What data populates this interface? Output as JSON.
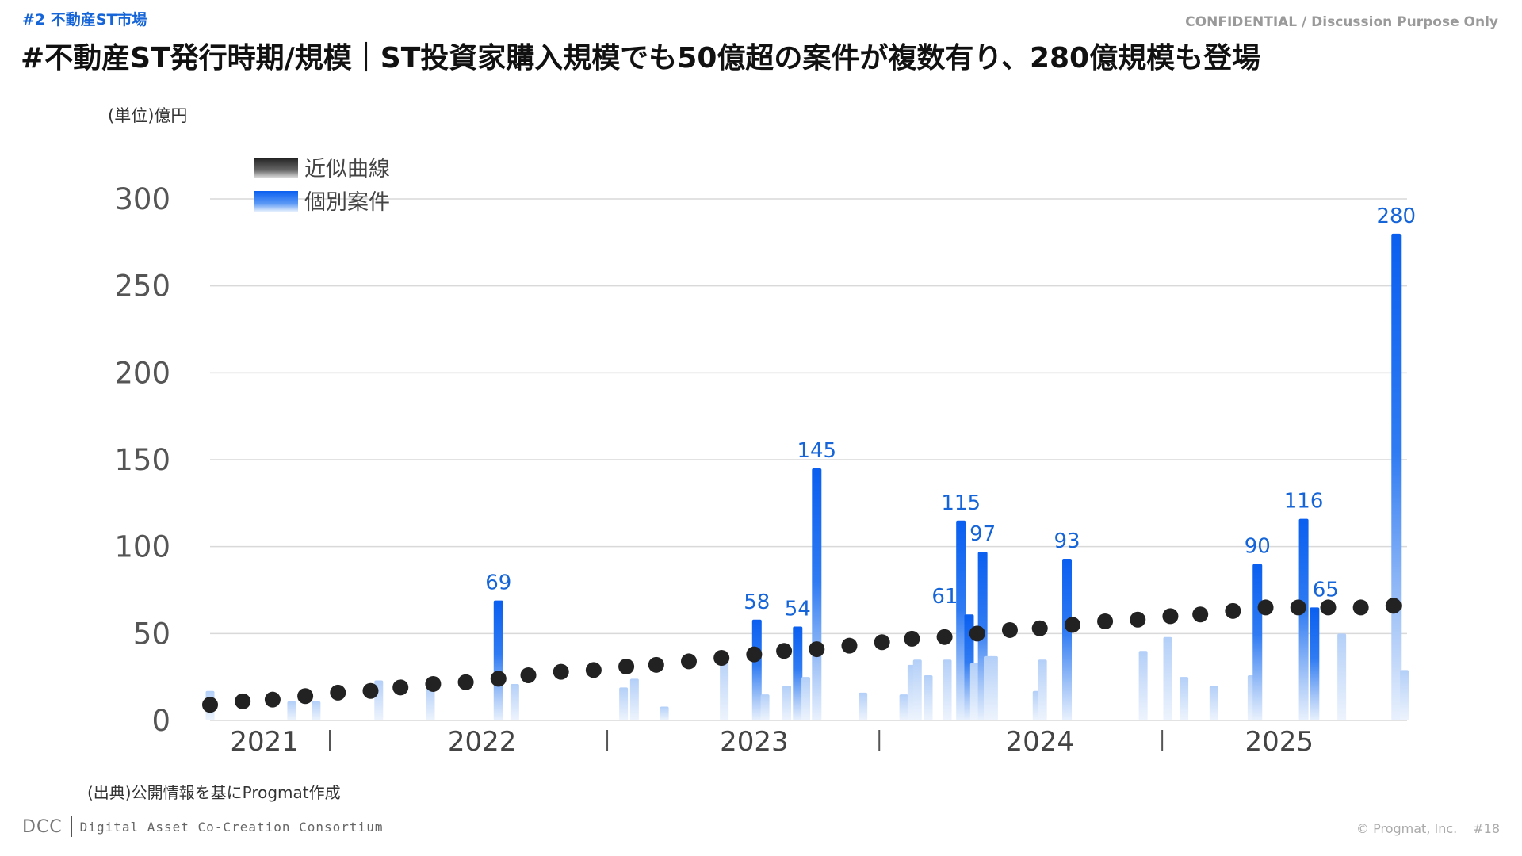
{
  "header": {
    "section_tag": "#2 不動産ST市場",
    "confidential": "CONFIDENTIAL / Discussion Purpose Only",
    "headline": "#不動産ST発行時期/規模｜ST投資家購入規模でも50億超の案件が複数有り、280億規模も登場"
  },
  "footer": {
    "source": "(出典)公開情報を基にProgmat作成",
    "dcc": "DCC",
    "consortium": "Digital Asset Co-Creation Consortium",
    "copyright": "© Progmat, Inc.",
    "page": "#18"
  },
  "colors": {
    "bar_top": "#0a5ff0",
    "bar_faint": "#cfe0fb",
    "trend_dot": "#222222",
    "label": "#1565d8",
    "grid": "#d9d9d9"
  },
  "chart_data": {
    "type": "bar",
    "unit_label": "(単位)億円",
    "ylim": [
      0,
      300
    ],
    "yticks": [
      0,
      50,
      100,
      150,
      200,
      250,
      300
    ],
    "x_range": [
      2021.0,
      2025.4
    ],
    "year_labels": [
      {
        "year": 2021.2,
        "label": "2021"
      },
      {
        "year": 2022.0,
        "label": "2022"
      },
      {
        "year": 2023.0,
        "label": "2023"
      },
      {
        "year": 2024.05,
        "label": "2024"
      },
      {
        "year": 2024.93,
        "label": "2025"
      }
    ],
    "year_dividers": [
      2021.44,
      2022.46,
      2023.46,
      2024.5
    ],
    "grid": true,
    "legend": [
      {
        "name": "近似曲線",
        "icon": "black-gradient-swatch"
      },
      {
        "name": "個別案件",
        "icon": "blue-gradient-swatch"
      }
    ],
    "series": [
      {
        "name": "個別案件",
        "kind": "bar",
        "points": [
          {
            "x": 2021.0,
            "y": 17
          },
          {
            "x": 2021.3,
            "y": 11
          },
          {
            "x": 2021.39,
            "y": 11
          },
          {
            "x": 2021.62,
            "y": 23
          },
          {
            "x": 2021.81,
            "y": 19
          },
          {
            "x": 2022.06,
            "y": 69,
            "label": "69"
          },
          {
            "x": 2022.12,
            "y": 21
          },
          {
            "x": 2022.52,
            "y": 19
          },
          {
            "x": 2022.56,
            "y": 24
          },
          {
            "x": 2022.67,
            "y": 8
          },
          {
            "x": 2022.89,
            "y": 37
          },
          {
            "x": 2023.01,
            "y": 58,
            "label": "58"
          },
          {
            "x": 2023.04,
            "y": 15
          },
          {
            "x": 2023.12,
            "y": 20
          },
          {
            "x": 2023.16,
            "y": 54,
            "label": "54"
          },
          {
            "x": 2023.19,
            "y": 25
          },
          {
            "x": 2023.23,
            "y": 145,
            "label": "145"
          },
          {
            "x": 2023.4,
            "y": 16
          },
          {
            "x": 2023.55,
            "y": 15
          },
          {
            "x": 2023.58,
            "y": 32
          },
          {
            "x": 2023.6,
            "y": 35
          },
          {
            "x": 2023.64,
            "y": 26
          },
          {
            "x": 2023.71,
            "y": 35
          },
          {
            "x": 2023.76,
            "y": 115,
            "label": "115"
          },
          {
            "x": 2023.79,
            "y": 61,
            "label": "61"
          },
          {
            "x": 2023.81,
            "y": 33
          },
          {
            "x": 2023.84,
            "y": 97,
            "label": "97"
          },
          {
            "x": 2023.86,
            "y": 37
          },
          {
            "x": 2023.88,
            "y": 37
          },
          {
            "x": 2024.04,
            "y": 17
          },
          {
            "x": 2024.06,
            "y": 35
          },
          {
            "x": 2024.15,
            "y": 93,
            "label": "93"
          },
          {
            "x": 2024.43,
            "y": 40
          },
          {
            "x": 2024.52,
            "y": 48
          },
          {
            "x": 2024.58,
            "y": 25
          },
          {
            "x": 2024.69,
            "y": 20
          },
          {
            "x": 2024.83,
            "y": 26
          },
          {
            "x": 2024.85,
            "y": 90,
            "label": "90"
          },
          {
            "x": 2025.02,
            "y": 116,
            "label": "116"
          },
          {
            "x": 2025.06,
            "y": 65,
            "label": "65"
          },
          {
            "x": 2025.16,
            "y": 50
          },
          {
            "x": 2025.36,
            "y": 280,
            "label": "280"
          },
          {
            "x": 2025.39,
            "y": 29
          }
        ]
      },
      {
        "name": "近似曲線",
        "kind": "scatter",
        "x": [
          2021.0,
          2021.12,
          2021.23,
          2021.35,
          2021.47,
          2021.59,
          2021.7,
          2021.82,
          2021.94,
          2022.06,
          2022.17,
          2022.29,
          2022.41,
          2022.53,
          2022.64,
          2022.76,
          2022.88,
          2023.0,
          2023.11,
          2023.23,
          2023.35,
          2023.47,
          2023.58,
          2023.7,
          2023.82,
          2023.94,
          2024.05,
          2024.17,
          2024.29,
          2024.41,
          2024.53,
          2024.64,
          2024.76,
          2024.88,
          2025.0,
          2025.11,
          2025.23,
          2025.35
        ],
        "values": [
          9,
          11,
          12,
          14,
          16,
          17,
          19,
          21,
          22,
          24,
          26,
          28,
          29,
          31,
          32,
          34,
          36,
          38,
          40,
          41,
          43,
          45,
          47,
          48,
          50,
          52,
          53,
          55,
          57,
          58,
          60,
          61,
          63,
          65,
          65,
          65,
          65,
          66
        ]
      }
    ]
  }
}
